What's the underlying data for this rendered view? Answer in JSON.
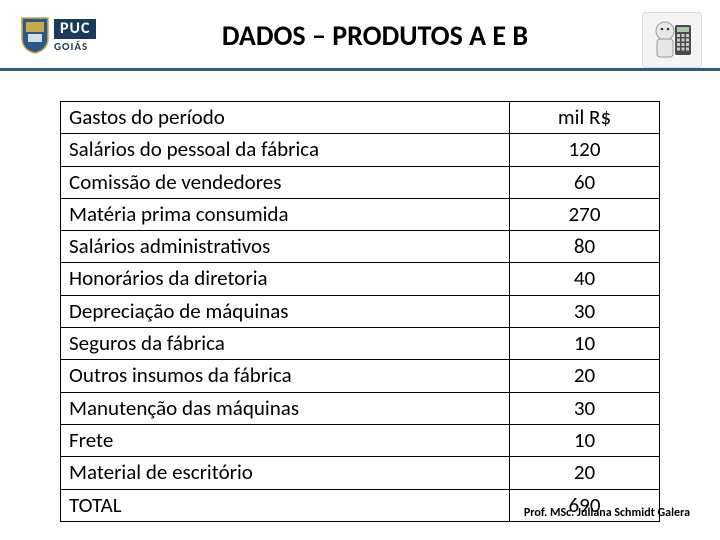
{
  "header": {
    "logo_puc": "PUC",
    "logo_goias": "GOIÁS",
    "title": "DADOS – PRODUTOS A E B"
  },
  "table": {
    "header_label": "Gastos do período",
    "header_value": "mil R$",
    "rows": [
      {
        "label": "Salários do pessoal da fábrica",
        "value": "120"
      },
      {
        "label": "Comissão de vendedores",
        "value": "60"
      },
      {
        "label": "Matéria prima consumida",
        "value": "270"
      },
      {
        "label": "Salários administrativos",
        "value": "80"
      },
      {
        "label": "Honorários da diretoria",
        "value": "40"
      },
      {
        "label": "Depreciação de máquinas",
        "value": "30"
      },
      {
        "label": "Seguros da fábrica",
        "value": "10"
      },
      {
        "label": "Outros insumos da fábrica",
        "value": "20"
      },
      {
        "label": "Manutenção das máquinas",
        "value": "30"
      },
      {
        "label": "Frete",
        "value": "10"
      },
      {
        "label": "Material de escritório",
        "value": "20"
      },
      {
        "label": "TOTAL",
        "value": "690"
      }
    ],
    "border_color": "#000000",
    "font_size": 21,
    "value_col_width": 150
  },
  "footer": {
    "text": "Prof. MSc. Juliana Schmidt Galera"
  },
  "colors": {
    "rule": "#2a5a8a",
    "logo_bg": "#1a3a5c",
    "background": "#ffffff"
  }
}
